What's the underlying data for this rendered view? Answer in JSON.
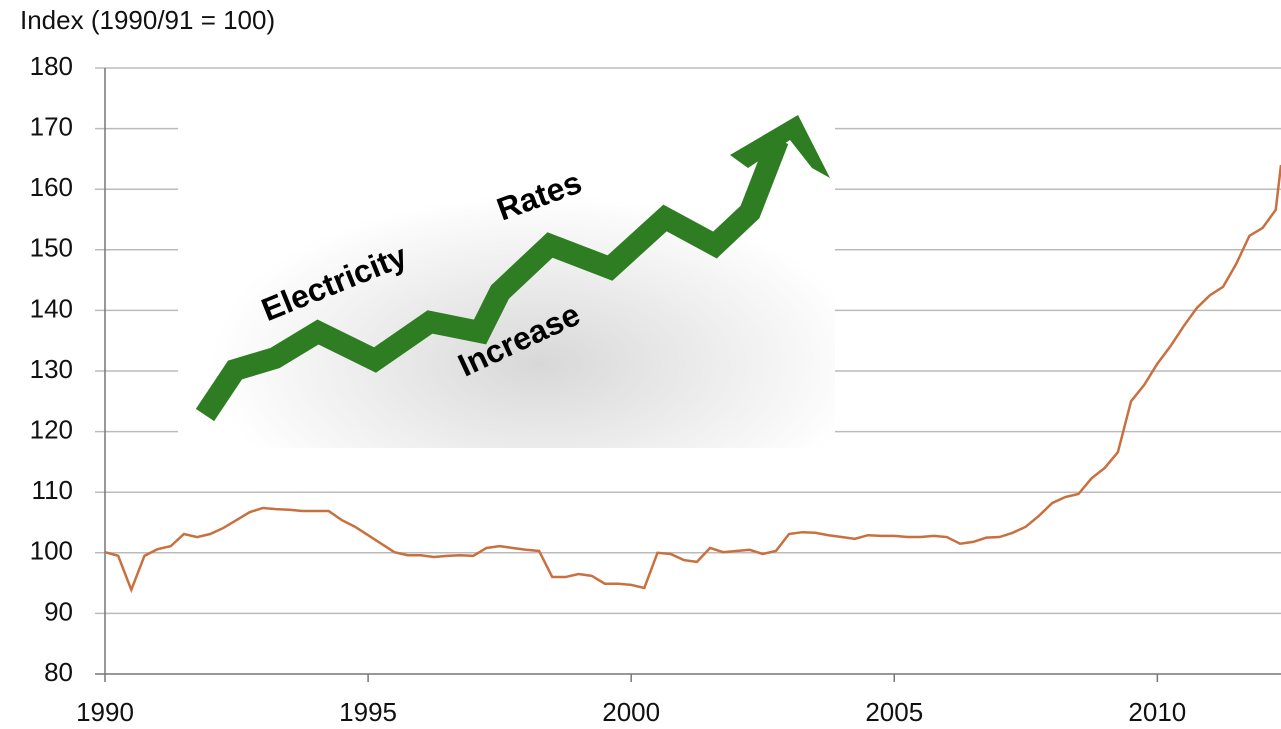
{
  "chart_data": {
    "type": "line",
    "title": "Index (1990/91 = 100)",
    "annotations": [
      "Electricity",
      "Rates",
      "Increase"
    ],
    "x": [
      1990,
      1990.25,
      1990.5,
      1990.75,
      1991,
      1991.25,
      1991.5,
      1991.75,
      1992,
      1992.25,
      1992.5,
      1992.75,
      1993,
      1993.25,
      1993.5,
      1993.75,
      1994,
      1994.25,
      1994.5,
      1994.75,
      1995,
      1995.25,
      1995.5,
      1995.75,
      1996,
      1996.25,
      1996.5,
      1996.75,
      1997,
      1997.25,
      1997.5,
      1997.75,
      1998,
      1998.25,
      1998.5,
      1998.75,
      1999,
      1999.25,
      1999.5,
      1999.75,
      2000,
      2000.25,
      2000.5,
      2000.75,
      2001,
      2001.25,
      2001.5,
      2001.75,
      2002,
      2002.25,
      2002.5,
      2002.75,
      2003,
      2003.25,
      2003.5,
      2003.75,
      2004,
      2004.25,
      2004.5,
      2004.75,
      2005,
      2005.25,
      2005.5,
      2005.75,
      2006,
      2006.25,
      2006.5,
      2006.75,
      2007,
      2007.25,
      2007.5,
      2007.75,
      2008,
      2008.25,
      2008.5,
      2008.75,
      2009,
      2009.25,
      2009.5,
      2009.75,
      2010,
      2010.25,
      2010.5,
      2010.75,
      2011,
      2011.25,
      2011.5,
      2011.75,
      2012,
      2012.25,
      2012.35
    ],
    "series": [
      {
        "color": "#c8703f",
        "values": [
          100.1,
          99.5,
          93.9,
          99.5,
          100.6,
          101.1,
          103.1,
          102.6,
          103.1,
          104.1,
          105.4,
          106.7,
          107.4,
          107.2,
          107.1,
          106.9,
          106.9,
          106.9,
          105.4,
          104.3,
          102.9,
          101.5,
          100.1,
          99.6,
          99.6,
          99.3,
          99.5,
          99.6,
          99.5,
          100.8,
          101.1,
          100.8,
          100.5,
          100.3,
          96.0,
          96.0,
          96.5,
          96.2,
          94.9,
          94.9,
          94.7,
          94.2,
          100.0,
          99.8,
          98.8,
          98.5,
          100.8,
          100.1,
          100.3,
          100.5,
          99.8,
          100.3,
          103.1,
          103.4,
          103.3,
          102.9,
          102.6,
          102.3,
          102.9,
          102.8,
          102.8,
          102.6,
          102.6,
          102.8,
          102.6,
          101.5,
          101.8,
          102.5,
          102.6,
          103.3,
          104.3,
          106.1,
          108.2,
          109.2,
          109.7,
          112.3,
          114.0,
          116.6,
          125.0,
          127.7,
          131.2,
          134.1,
          137.4,
          140.4,
          142.5,
          143.9,
          147.7,
          152.3,
          153.6,
          156.6,
          164
        ]
      }
    ],
    "xlim": [
      1990,
      2012.35
    ],
    "xticks": [
      1990,
      1995,
      2000,
      2005,
      2010
    ],
    "ylim": [
      80,
      180
    ],
    "yticks": [
      80,
      90,
      100,
      110,
      120,
      130,
      140,
      150,
      160,
      170,
      180
    ],
    "grid": true
  }
}
